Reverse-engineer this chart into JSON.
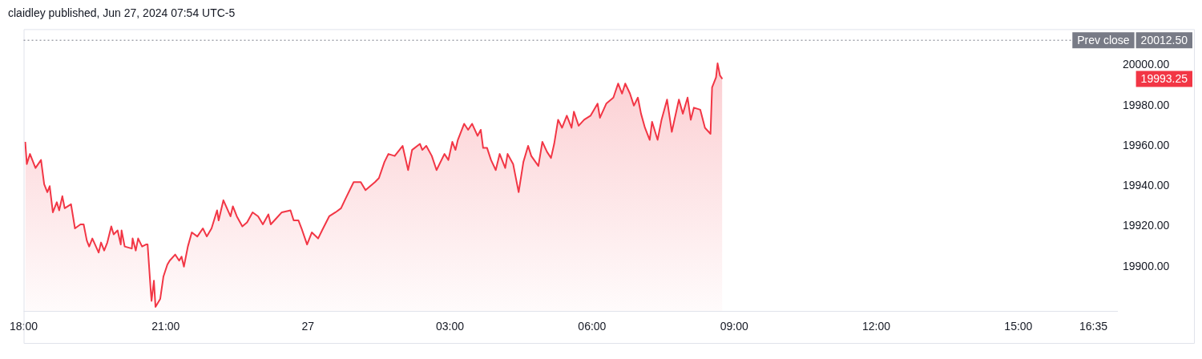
{
  "chart_data": {
    "type": "area",
    "title": "claidley published, Jun 27, 2024 07:54 UTC-5",
    "x": [
      "2024-06-26T18:02",
      "2024-06-26T18:04",
      "2024-06-26T18:08",
      "2024-06-26T18:11",
      "2024-06-26T18:15",
      "2024-06-26T18:22",
      "2024-06-26T18:26",
      "2024-06-26T18:30",
      "2024-06-26T18:33",
      "2024-06-26T18:37",
      "2024-06-26T18:42",
      "2024-06-26T18:45",
      "2024-06-26T18:49",
      "2024-06-26T18:52",
      "2024-06-26T19:00",
      "2024-06-26T19:05",
      "2024-06-26T19:12",
      "2024-06-26T19:16",
      "2024-06-26T19:20",
      "2024-06-26T19:23",
      "2024-06-26T19:27",
      "2024-06-26T19:35",
      "2024-06-26T19:38",
      "2024-06-26T19:42",
      "2024-06-26T19:46",
      "2024-06-26T19:51",
      "2024-06-26T19:54",
      "2024-06-26T19:59",
      "2024-06-26T20:03",
      "2024-06-26T20:04",
      "2024-06-26T20:08",
      "2024-06-26T20:17",
      "2024-06-26T20:18",
      "2024-06-26T20:22",
      "2024-06-26T20:25",
      "2024-06-26T20:30",
      "2024-06-26T20:35",
      "2024-06-26T20:37",
      "2024-06-26T20:41",
      "2024-06-26T20:42",
      "2024-06-26T20:45",
      "2024-06-26T20:47",
      "2024-06-26T20:53",
      "2024-06-26T20:57",
      "2024-06-26T21:02",
      "2024-06-26T21:05",
      "2024-06-26T21:12",
      "2024-06-26T21:17",
      "2024-06-26T21:20",
      "2024-06-26T21:23",
      "2024-06-26T21:28",
      "2024-06-26T21:33",
      "2024-06-26T21:40",
      "2024-06-26T21:47",
      "2024-06-26T21:52",
      "2024-06-26T21:58",
      "2024-06-26T22:05",
      "2024-06-26T22:07",
      "2024-06-26T22:13",
      "2024-06-26T22:22",
      "2024-06-26T22:25",
      "2024-06-26T22:30",
      "2024-06-26T22:37",
      "2024-06-26T22:43",
      "2024-06-26T22:50",
      "2024-06-26T22:57",
      "2024-06-26T23:03",
      "2024-06-26T23:10",
      "2024-06-26T23:13",
      "2024-06-26T23:20",
      "2024-06-26T23:27",
      "2024-06-26T23:38",
      "2024-06-26T23:42",
      "2024-06-26T23:48",
      "2024-06-26T23:52",
      "2024-06-26T23:59",
      "2024-06-27T00:05",
      "2024-06-27T00:13",
      "2024-06-27T00:18",
      "2024-06-27T00:27",
      "2024-06-27T00:35",
      "2024-06-27T00:42",
      "2024-06-27T00:48",
      "2024-06-27T00:58",
      "2024-06-27T01:07",
      "2024-06-27T01:13",
      "2024-06-27T01:25",
      "2024-06-27T01:30",
      "2024-06-27T01:37",
      "2024-06-27T01:42",
      "2024-06-27T01:50",
      "2024-06-27T02:00",
      "2024-06-27T02:07",
      "2024-06-27T02:12",
      "2024-06-27T02:22",
      "2024-06-27T02:25",
      "2024-06-27T02:30",
      "2024-06-27T02:37",
      "2024-06-27T02:43",
      "2024-06-27T02:53",
      "2024-06-27T02:58",
      "2024-06-27T03:03",
      "2024-06-27T03:07",
      "2024-06-27T03:10",
      "2024-06-27T03:18",
      "2024-06-27T03:23",
      "2024-06-27T03:28",
      "2024-06-27T03:35",
      "2024-06-27T03:39",
      "2024-06-27T03:42",
      "2024-06-27T03:47",
      "2024-06-27T03:52",
      "2024-06-27T03:58",
      "2024-06-27T04:03",
      "2024-06-27T04:10",
      "2024-06-27T04:13",
      "2024-06-27T04:20",
      "2024-06-27T04:27",
      "2024-06-27T04:33",
      "2024-06-27T04:39",
      "2024-06-27T04:43",
      "2024-06-27T04:52",
      "2024-06-27T04:57",
      "2024-06-27T05:03",
      "2024-06-27T05:08",
      "2024-06-27T05:12",
      "2024-06-27T05:17",
      "2024-06-27T05:22",
      "2024-06-27T05:28",
      "2024-06-27T05:34",
      "2024-06-27T05:37",
      "2024-06-27T05:43",
      "2024-06-27T05:50",
      "2024-06-27T05:58",
      "2024-06-27T06:07",
      "2024-06-27T06:10",
      "2024-06-27T06:18",
      "2024-06-27T06:27",
      "2024-06-27T06:33",
      "2024-06-27T06:38",
      "2024-06-27T06:42",
      "2024-06-27T06:48",
      "2024-06-27T06:53",
      "2024-06-27T06:58",
      "2024-06-27T07:02",
      "2024-06-27T07:07",
      "2024-06-27T07:13",
      "2024-06-27T07:16",
      "2024-06-27T07:23",
      "2024-06-27T07:28",
      "2024-06-27T07:35",
      "2024-06-27T07:41",
      "2024-06-27T07:50",
      "2024-06-27T07:55",
      "2024-06-27T08:01",
      "2024-06-27T08:05",
      "2024-06-27T08:09",
      "2024-06-27T08:17",
      "2024-06-27T08:23",
      "2024-06-27T08:30",
      "2024-06-27T08:32",
      "2024-06-27T08:37",
      "2024-06-27T08:39",
      "2024-06-27T08:42",
      "2024-06-27T08:45"
    ],
    "series": [
      {
        "color": "#f23645",
        "values": [
          19962,
          19951,
          19956,
          19953,
          19949,
          19953,
          19941,
          19937,
          19940,
          19927,
          19932,
          19928,
          19935,
          19929,
          19931,
          19919,
          19921,
          19921,
          19913,
          19910,
          19914,
          19907,
          19912,
          19908,
          19912,
          19920,
          19916,
          19918,
          19911,
          19918,
          19910,
          19909,
          19914,
          19908,
          19914,
          19910,
          19911,
          19911,
          19888,
          19883,
          19893,
          19880,
          19884,
          19895,
          19901,
          19903,
          19906,
          19903,
          19905,
          19900,
          19910,
          19917,
          19915,
          19919,
          19915,
          19919,
          19928,
          19923,
          19933,
          19925,
          19930,
          19925,
          19920,
          19922,
          19927,
          19925,
          19921,
          19926,
          19921,
          19924,
          19927,
          19928,
          19923,
          19923,
          19919,
          19911,
          19917,
          19914,
          19918,
          19925,
          19927,
          19929,
          19934,
          19942,
          19942,
          19938,
          19942,
          19944,
          19952,
          19956,
          19955,
          19960,
          19948,
          19958,
          19961,
          19958,
          19960,
          19955,
          19948,
          19956,
          19953,
          19962,
          19958,
          19963,
          19971,
          19968,
          19971,
          19965,
          19968,
          19959,
          19959,
          19953,
          19948,
          19956,
          19949,
          19956,
          19951,
          19937,
          19952,
          19960,
          19955,
          19950,
          19962,
          19957,
          19954,
          19961,
          19973,
          19969,
          19975,
          19969,
          19977,
          19970,
          19973,
          19975,
          19981,
          19974,
          19981,
          19984,
          19991,
          19986,
          19991,
          19986,
          19980,
          19984,
          19976,
          19969,
          19963,
          19972,
          19963,
          19973,
          19983,
          19967,
          19983,
          19976,
          19984,
          19973,
          19979,
          19978,
          19969,
          19966,
          19989,
          19994,
          20001,
          19995,
          19993.25
        ]
      }
    ],
    "xlim": [
      "2024-06-26T18:00",
      "2024-06-27T17:06"
    ],
    "xticks": [
      {
        "value": "2024-06-26T18:00",
        "label": "18:00"
      },
      {
        "value": "2024-06-26T21:00",
        "label": "21:00"
      },
      {
        "value": "2024-06-27T00:00",
        "label": "27"
      },
      {
        "value": "2024-06-27T03:00",
        "label": "03:00"
      },
      {
        "value": "2024-06-27T06:00",
        "label": "06:00"
      },
      {
        "value": "2024-06-27T09:00",
        "label": "09:00"
      },
      {
        "value": "2024-06-27T12:00",
        "label": "12:00"
      },
      {
        "value": "2024-06-27T15:00",
        "label": "15:00"
      },
      {
        "value": "2024-06-27T16:35",
        "label": "16:35"
      }
    ],
    "ylim": [
      19878,
      20018
    ],
    "yticks": [
      {
        "value": 19900,
        "label": "19900.00"
      },
      {
        "value": 19920,
        "label": "19920.00"
      },
      {
        "value": 19940,
        "label": "19940.00"
      },
      {
        "value": 19960,
        "label": "19960.00"
      },
      {
        "value": 19980,
        "label": "19980.00"
      },
      {
        "value": 20000,
        "label": "20000.00"
      }
    ],
    "ref_lines": [
      {
        "axis": "y",
        "value": 20012.5,
        "label": "Prev close",
        "color": "#787b86",
        "line_style": "dotted"
      }
    ],
    "annotations": [
      "20012.50",
      "19993.25"
    ]
  }
}
